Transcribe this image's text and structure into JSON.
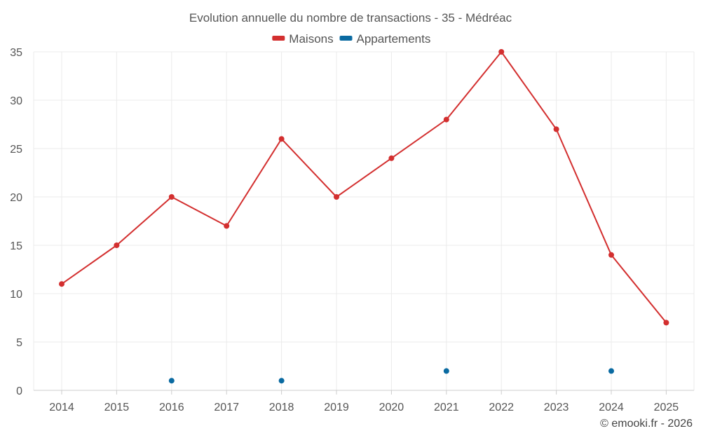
{
  "chart_data": {
    "type": "line",
    "title": "Evolution annuelle du nombre de transactions - 35 - Médréac",
    "categories": [
      "2014",
      "2015",
      "2016",
      "2017",
      "2018",
      "2019",
      "2020",
      "2021",
      "2022",
      "2023",
      "2024",
      "2025"
    ],
    "ylim": [
      0,
      35
    ],
    "yticks": [
      0,
      5,
      10,
      15,
      20,
      25,
      30,
      35
    ],
    "grid": true,
    "legend_position": "top-center",
    "series": [
      {
        "name": "Maisons",
        "color": "#d32f2f",
        "style": "line-markers",
        "values": [
          11,
          15,
          20,
          17,
          26,
          20,
          24,
          28,
          35,
          27,
          14,
          7
        ]
      },
      {
        "name": "Appartements",
        "color": "#0a6aa1",
        "style": "markers",
        "values": [
          null,
          null,
          1,
          null,
          1,
          null,
          null,
          2,
          null,
          null,
          2,
          null
        ]
      }
    ],
    "credit": "© emooki.fr - 2026"
  }
}
